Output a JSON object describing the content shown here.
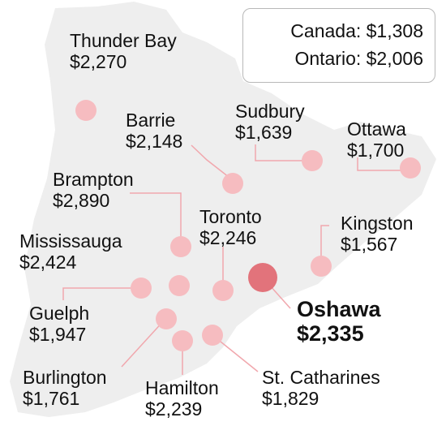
{
  "colors": {
    "land": "#eeeeee",
    "marker": "#f6bcc0",
    "marker_highlight": "#e2737b",
    "leader_line": "#f1a7ad",
    "text": "#111111"
  },
  "averages": {
    "canada": "Canada: $1,308",
    "ontario": "Ontario: $2,006"
  },
  "cities": [
    {
      "id": "thunder-bay",
      "name": "Thunder Bay",
      "value": "$2,270",
      "highlight": false
    },
    {
      "id": "barrie",
      "name": "Barrie",
      "value": "$2,148",
      "highlight": false
    },
    {
      "id": "sudbury",
      "name": "Sudbury",
      "value": "$1,639",
      "highlight": false
    },
    {
      "id": "ottawa",
      "name": "Ottawa",
      "value": "$1,700",
      "highlight": false
    },
    {
      "id": "brampton",
      "name": "Brampton",
      "value": "$2,890",
      "highlight": false
    },
    {
      "id": "toronto",
      "name": "Toronto",
      "value": "$2,246",
      "highlight": false
    },
    {
      "id": "kingston",
      "name": "Kingston",
      "value": "$1,567",
      "highlight": false
    },
    {
      "id": "mississauga",
      "name": "Mississauga",
      "value": "$2,424",
      "highlight": false
    },
    {
      "id": "oshawa",
      "name": "Oshawa",
      "value": "$2,335",
      "highlight": true
    },
    {
      "id": "guelph",
      "name": "Guelph",
      "value": "$1,947",
      "highlight": false
    },
    {
      "id": "burlington",
      "name": "Burlington",
      "value": "$1,761",
      "highlight": false
    },
    {
      "id": "hamilton",
      "name": "Hamilton",
      "value": "$2,239",
      "highlight": false
    },
    {
      "id": "st-catharines",
      "name": "St. Catharines",
      "value": "$1,829",
      "highlight": false
    }
  ]
}
